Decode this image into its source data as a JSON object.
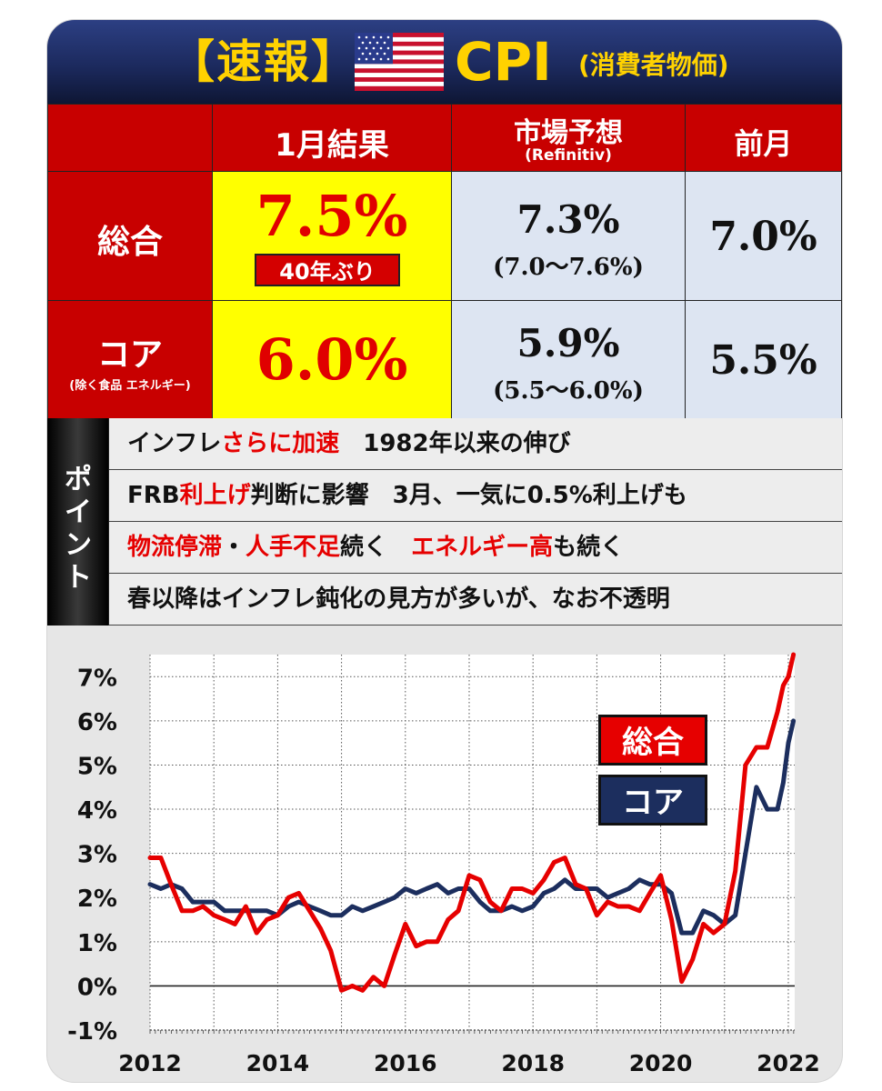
{
  "header": {
    "badge": "【速報】",
    "title": "CPI",
    "subtitle": "(消費者物価)",
    "flag_icon": "us-flag-icon"
  },
  "table": {
    "col_result": "1月結果",
    "col_forecast": "市場予想",
    "col_forecast_source": "(Refinitiv)",
    "col_prev": "前月",
    "rows": [
      {
        "label": "総合",
        "label_sub": "",
        "result": "7.5%",
        "result_tag": "40年ぶり",
        "forecast": "7.3%",
        "forecast_range": "(7.0〜7.6%)",
        "prev": "7.0%"
      },
      {
        "label": "コア",
        "label_sub": "(除く食品 エネルギー)",
        "result": "6.0%",
        "forecast": "5.9%",
        "forecast_range": "(5.5〜6.0%)",
        "prev": "5.5%"
      }
    ]
  },
  "points": {
    "label_chars": [
      "ポ",
      "イ",
      "ン",
      "ト"
    ],
    "p1": {
      "a": "インフレ",
      "b": "さらに加速",
      "c": "　1982年以来の伸び"
    },
    "p2": {
      "a": "FRB",
      "b": "利上げ",
      "c": "判断に影響　3月、一気に0.5%利上げも"
    },
    "p3": {
      "a": "物流停滞",
      "b": "・",
      "c": "人手不足",
      "d": "続く　",
      "e": "エネルギー高",
      "f": "も続く"
    },
    "p4": {
      "a": "春以降はインフレ鈍化の見方が多いが、なお不透明"
    }
  },
  "colors": {
    "headline": "#c80000",
    "result_bg": "#ffff00",
    "forecast_bg": "#dde5f2",
    "series_overall": "#e60000",
    "series_core": "#1c2e5e"
  },
  "chart_data": {
    "type": "line",
    "title": "",
    "xlabel": "",
    "ylabel": "",
    "xlim": [
      2012,
      2022.1
    ],
    "ylim": [
      -1,
      7.5
    ],
    "x_ticks": [
      2012,
      2014,
      2016,
      2018,
      2020,
      2022
    ],
    "x_tick_labels": [
      "2012",
      "2014",
      "2016",
      "2018",
      "2020",
      "2022"
    ],
    "y_ticks": [
      -1,
      0,
      1,
      2,
      3,
      4,
      5,
      6,
      7
    ],
    "y_tick_labels": [
      "-1%",
      "0%",
      "1%",
      "2%",
      "3%",
      "4%",
      "5%",
      "6%",
      "7%"
    ],
    "grid": true,
    "legend_position": "top-right",
    "series": [
      {
        "name": "総合",
        "color": "#e60000",
        "points": [
          [
            2012.0,
            2.9
          ],
          [
            2012.17,
            2.9
          ],
          [
            2012.33,
            2.3
          ],
          [
            2012.5,
            1.7
          ],
          [
            2012.67,
            1.7
          ],
          [
            2012.83,
            1.8
          ],
          [
            2013.0,
            1.6
          ],
          [
            2013.17,
            1.5
          ],
          [
            2013.33,
            1.4
          ],
          [
            2013.5,
            1.8
          ],
          [
            2013.67,
            1.2
          ],
          [
            2013.83,
            1.5
          ],
          [
            2014.0,
            1.6
          ],
          [
            2014.17,
            2.0
          ],
          [
            2014.33,
            2.1
          ],
          [
            2014.5,
            1.7
          ],
          [
            2014.67,
            1.3
          ],
          [
            2014.83,
            0.8
          ],
          [
            2015.0,
            -0.1
          ],
          [
            2015.17,
            0.0
          ],
          [
            2015.33,
            -0.1
          ],
          [
            2015.5,
            0.2
          ],
          [
            2015.67,
            0.0
          ],
          [
            2015.83,
            0.7
          ],
          [
            2016.0,
            1.4
          ],
          [
            2016.17,
            0.9
          ],
          [
            2016.33,
            1.0
          ],
          [
            2016.5,
            1.0
          ],
          [
            2016.67,
            1.5
          ],
          [
            2016.83,
            1.7
          ],
          [
            2017.0,
            2.5
          ],
          [
            2017.17,
            2.4
          ],
          [
            2017.33,
            1.9
          ],
          [
            2017.5,
            1.7
          ],
          [
            2017.67,
            2.2
          ],
          [
            2017.83,
            2.2
          ],
          [
            2018.0,
            2.1
          ],
          [
            2018.17,
            2.4
          ],
          [
            2018.33,
            2.8
          ],
          [
            2018.5,
            2.9
          ],
          [
            2018.67,
            2.3
          ],
          [
            2018.83,
            2.2
          ],
          [
            2019.0,
            1.6
          ],
          [
            2019.17,
            1.9
          ],
          [
            2019.33,
            1.8
          ],
          [
            2019.5,
            1.8
          ],
          [
            2019.67,
            1.7
          ],
          [
            2019.83,
            2.1
          ],
          [
            2020.0,
            2.5
          ],
          [
            2020.17,
            1.5
          ],
          [
            2020.33,
            0.1
          ],
          [
            2020.5,
            0.6
          ],
          [
            2020.67,
            1.4
          ],
          [
            2020.83,
            1.2
          ],
          [
            2021.0,
            1.4
          ],
          [
            2021.17,
            2.6
          ],
          [
            2021.33,
            5.0
          ],
          [
            2021.5,
            5.4
          ],
          [
            2021.67,
            5.4
          ],
          [
            2021.83,
            6.2
          ],
          [
            2021.92,
            6.8
          ],
          [
            2022.0,
            7.0
          ],
          [
            2022.08,
            7.5
          ]
        ]
      },
      {
        "name": "コア",
        "color": "#1c2e5e",
        "points": [
          [
            2012.0,
            2.3
          ],
          [
            2012.17,
            2.2
          ],
          [
            2012.33,
            2.3
          ],
          [
            2012.5,
            2.2
          ],
          [
            2012.67,
            1.9
          ],
          [
            2012.83,
            1.9
          ],
          [
            2013.0,
            1.9
          ],
          [
            2013.17,
            1.7
          ],
          [
            2013.33,
            1.7
          ],
          [
            2013.5,
            1.7
          ],
          [
            2013.67,
            1.7
          ],
          [
            2013.83,
            1.7
          ],
          [
            2014.0,
            1.6
          ],
          [
            2014.17,
            1.8
          ],
          [
            2014.33,
            1.9
          ],
          [
            2014.5,
            1.8
          ],
          [
            2014.67,
            1.7
          ],
          [
            2014.83,
            1.6
          ],
          [
            2015.0,
            1.6
          ],
          [
            2015.17,
            1.8
          ],
          [
            2015.33,
            1.7
          ],
          [
            2015.5,
            1.8
          ],
          [
            2015.67,
            1.9
          ],
          [
            2015.83,
            2.0
          ],
          [
            2016.0,
            2.2
          ],
          [
            2016.17,
            2.1
          ],
          [
            2016.33,
            2.2
          ],
          [
            2016.5,
            2.3
          ],
          [
            2016.67,
            2.1
          ],
          [
            2016.83,
            2.2
          ],
          [
            2017.0,
            2.2
          ],
          [
            2017.17,
            1.9
          ],
          [
            2017.33,
            1.7
          ],
          [
            2017.5,
            1.7
          ],
          [
            2017.67,
            1.8
          ],
          [
            2017.83,
            1.7
          ],
          [
            2018.0,
            1.8
          ],
          [
            2018.17,
            2.1
          ],
          [
            2018.33,
            2.2
          ],
          [
            2018.5,
            2.4
          ],
          [
            2018.67,
            2.2
          ],
          [
            2018.83,
            2.2
          ],
          [
            2019.0,
            2.2
          ],
          [
            2019.17,
            2.0
          ],
          [
            2019.33,
            2.1
          ],
          [
            2019.5,
            2.2
          ],
          [
            2019.67,
            2.4
          ],
          [
            2019.83,
            2.3
          ],
          [
            2020.0,
            2.3
          ],
          [
            2020.17,
            2.1
          ],
          [
            2020.33,
            1.2
          ],
          [
            2020.5,
            1.2
          ],
          [
            2020.67,
            1.7
          ],
          [
            2020.83,
            1.6
          ],
          [
            2021.0,
            1.4
          ],
          [
            2021.17,
            1.6
          ],
          [
            2021.33,
            3.0
          ],
          [
            2021.5,
            4.5
          ],
          [
            2021.67,
            4.0
          ],
          [
            2021.83,
            4.0
          ],
          [
            2021.92,
            4.6
          ],
          [
            2022.0,
            5.5
          ],
          [
            2022.08,
            6.0
          ]
        ]
      }
    ]
  }
}
